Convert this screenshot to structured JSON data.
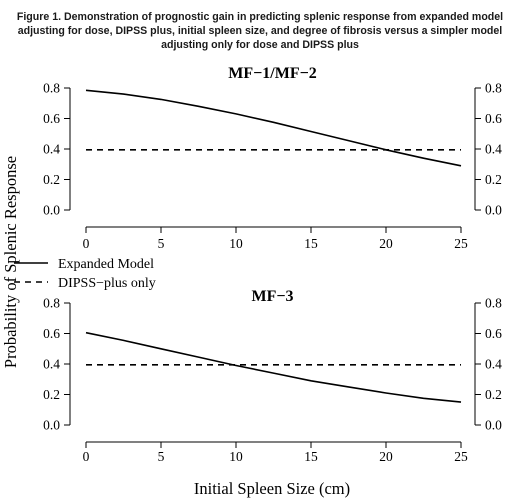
{
  "caption": "Figure 1. Demonstration of prognostic gain in predicting splenic response from expanded model adjusting for dose, DIPSS plus, initial spleen size, and degree of fibrosis versus a simpler model adjusting only for dose and DIPSS plus",
  "shared_ylabel": "Probability of Splenic Response",
  "shared_xlabel": "Initial Spleen Size (cm)",
  "legend": {
    "placement": "between-panels-left",
    "entries": [
      {
        "label": "Expanded Model",
        "style": "solid"
      },
      {
        "label": "DIPSS−plus only",
        "style": "dashed"
      }
    ]
  },
  "chart_data": [
    {
      "type": "line",
      "title": "MF−1/MF−2",
      "xlim": [
        0,
        25
      ],
      "ylim": [
        0,
        0.8
      ],
      "xticks": [
        0,
        5,
        10,
        15,
        20,
        25
      ],
      "xtick_labels": [
        "0",
        "5",
        "10",
        "15",
        "20",
        "25"
      ],
      "yticks": [
        0,
        0.2,
        0.4,
        0.6,
        0.8
      ],
      "ytick_labels": [
        "0.0",
        "0.2",
        "0.4",
        "0.6",
        "0.8"
      ],
      "right_axis": true,
      "grid": false,
      "series": [
        {
          "label": "Expanded Model",
          "style": "solid",
          "x": [
            0,
            2.5,
            5,
            7.5,
            10,
            12.5,
            15,
            17.5,
            20,
            22.5,
            25
          ],
          "y": [
            0.785,
            0.76,
            0.725,
            0.68,
            0.63,
            0.575,
            0.515,
            0.455,
            0.395,
            0.34,
            0.29
          ]
        },
        {
          "label": "DIPSS−plus only",
          "style": "dashed",
          "x": [
            0,
            25
          ],
          "y": [
            0.395,
            0.395
          ]
        }
      ]
    },
    {
      "type": "line",
      "title": "MF−3",
      "xlim": [
        0,
        25
      ],
      "ylim": [
        0,
        0.8
      ],
      "xticks": [
        0,
        5,
        10,
        15,
        20,
        25
      ],
      "xtick_labels": [
        "0",
        "5",
        "10",
        "15",
        "20",
        "25"
      ],
      "yticks": [
        0,
        0.2,
        0.4,
        0.6,
        0.8
      ],
      "ytick_labels": [
        "0.0",
        "0.2",
        "0.4",
        "0.6",
        "0.8"
      ],
      "right_axis": true,
      "grid": false,
      "series": [
        {
          "label": "Expanded Model",
          "style": "solid",
          "x": [
            0,
            2.5,
            5,
            7.5,
            10,
            12.5,
            15,
            17.5,
            20,
            22.5,
            25
          ],
          "y": [
            0.605,
            0.555,
            0.5,
            0.445,
            0.39,
            0.34,
            0.29,
            0.25,
            0.21,
            0.175,
            0.15
          ]
        },
        {
          "label": "DIPSS−plus only",
          "style": "dashed",
          "x": [
            0,
            25
          ],
          "y": [
            0.395,
            0.395
          ]
        }
      ]
    }
  ]
}
